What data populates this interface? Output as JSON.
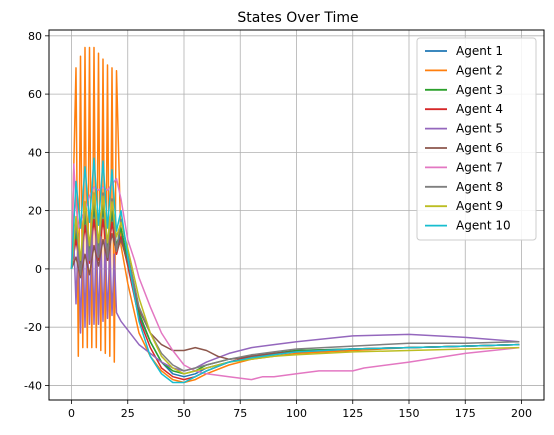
{
  "chart_data": {
    "type": "line",
    "title": "States Over Time",
    "xlabel": "",
    "ylabel": "",
    "xlim": [
      -10,
      210
    ],
    "ylim": [
      -45,
      82
    ],
    "xticks": [
      0,
      25,
      50,
      75,
      100,
      125,
      150,
      175,
      200
    ],
    "yticks": [
      -40,
      -20,
      0,
      20,
      40,
      60,
      80
    ],
    "grid": true,
    "legend_position": "top-right",
    "series": [
      {
        "name": "Agent 1",
        "color": "#1f77b4",
        "x": [
          0,
          2,
          4,
          6,
          8,
          10,
          12,
          14,
          16,
          18,
          20,
          22,
          25,
          30,
          35,
          40,
          45,
          50,
          55,
          60,
          70,
          80,
          90,
          100,
          125,
          150,
          175,
          199
        ],
        "y": [
          0,
          14,
          -1,
          19,
          4,
          21,
          4,
          21,
          4,
          19,
          6,
          13,
          2,
          -16,
          -25,
          -32,
          -36,
          -37,
          -36,
          -34,
          -32,
          -30,
          -29,
          -28,
          -27.5,
          -27,
          -26.5,
          -26
        ]
      },
      {
        "name": "Agent 2",
        "color": "#ff7f0e",
        "x": [
          0,
          2,
          3,
          4,
          5,
          6,
          7,
          8,
          9,
          10,
          11,
          12,
          13,
          14,
          15,
          16,
          17,
          18,
          19,
          20,
          22,
          25,
          30,
          35,
          40,
          45,
          50,
          55,
          60,
          70,
          80,
          90,
          100,
          125,
          150,
          175,
          199
        ],
        "y": [
          0,
          69,
          -30,
          73,
          -27,
          76,
          -27,
          76,
          -27,
          76,
          -27,
          74,
          -28,
          72,
          -29,
          70,
          -30,
          69,
          -32,
          68,
          8,
          -5,
          -22,
          -30,
          -35,
          -38,
          -39,
          -38,
          -36,
          -33,
          -31,
          -30,
          -29,
          -28,
          -27,
          -26.5,
          -26
        ]
      },
      {
        "name": "Agent 3",
        "color": "#2ca02c",
        "x": [
          0,
          2,
          4,
          6,
          8,
          10,
          12,
          14,
          16,
          18,
          20,
          22,
          25,
          30,
          35,
          40,
          45,
          50,
          55,
          60,
          70,
          80,
          90,
          100,
          125,
          150,
          175,
          199
        ],
        "y": [
          0,
          12,
          2,
          18,
          6,
          22,
          7,
          22,
          7,
          20,
          8,
          14,
          3,
          -15,
          -25,
          -32,
          -35,
          -36,
          -35,
          -33,
          -31,
          -30,
          -29,
          -28,
          -27.5,
          -27,
          -26.5,
          -26
        ]
      },
      {
        "name": "Agent 4",
        "color": "#d62728",
        "x": [
          0,
          2,
          4,
          6,
          8,
          10,
          12,
          14,
          16,
          18,
          20,
          22,
          25,
          30,
          35,
          40,
          45,
          50,
          55,
          60,
          70,
          80,
          90,
          100,
          125,
          150,
          175,
          199
        ],
        "y": [
          0,
          10,
          0,
          15,
          2,
          17,
          3,
          17,
          3,
          16,
          5,
          11,
          1,
          -17,
          -27,
          -34,
          -37,
          -38,
          -37,
          -35,
          -32,
          -30,
          -29,
          -28.5,
          -27.5,
          -27,
          -26.5,
          -26
        ]
      },
      {
        "name": "Agent 5",
        "color": "#9467bd",
        "x": [
          0,
          1,
          2,
          3,
          4,
          5,
          6,
          7,
          8,
          9,
          10,
          11,
          12,
          13,
          14,
          15,
          16,
          17,
          18,
          19,
          20,
          22,
          25,
          30,
          35,
          40,
          45,
          50,
          55,
          60,
          70,
          80,
          90,
          100,
          125,
          150,
          175,
          199
        ],
        "y": [
          0,
          10,
          -12,
          12,
          -22,
          14,
          -20,
          15,
          -19,
          14,
          -19,
          13,
          -19,
          11,
          -18,
          10,
          -17,
          8,
          -16,
          5,
          -15,
          -18,
          -21,
          -26,
          -29,
          -32,
          -34,
          -35,
          -34,
          -32,
          -29,
          -27,
          -26,
          -25,
          -23,
          -22.5,
          -23.5,
          -25
        ]
      },
      {
        "name": "Agent 6",
        "color": "#8c564b",
        "x": [
          0,
          2,
          4,
          6,
          8,
          10,
          12,
          14,
          16,
          18,
          20,
          22,
          25,
          30,
          35,
          40,
          45,
          50,
          55,
          60,
          65,
          70,
          80,
          90,
          100,
          125,
          150,
          175,
          199
        ],
        "y": [
          0,
          4,
          -3,
          5,
          -2,
          8,
          1,
          10,
          3,
          12,
          6,
          10,
          2,
          -14,
          -22,
          -26,
          -28,
          -28,
          -27,
          -28,
          -30,
          -31,
          -30,
          -29,
          -28.5,
          -27.5,
          -27,
          -26.5,
          -26
        ]
      },
      {
        "name": "Agent 7",
        "color": "#e377c2",
        "x": [
          0,
          1,
          2,
          3,
          4,
          6,
          8,
          10,
          12,
          14,
          16,
          18,
          20,
          22,
          25,
          28,
          30,
          35,
          40,
          45,
          50,
          55,
          60,
          70,
          80,
          85,
          90,
          100,
          110,
          125,
          130,
          150,
          175,
          199
        ],
        "y": [
          0,
          36,
          22,
          14,
          16,
          20,
          25,
          28,
          27,
          28,
          27,
          29,
          31,
          24,
          10,
          3,
          -3,
          -13,
          -22,
          -28,
          -33,
          -35,
          -36,
          -37,
          -38,
          -37,
          -37,
          -36,
          -35,
          -35,
          -34,
          -32,
          -29,
          -27
        ]
      },
      {
        "name": "Agent 8",
        "color": "#7f7f7f",
        "x": [
          0,
          2,
          4,
          6,
          8,
          10,
          12,
          14,
          16,
          18,
          20,
          22,
          25,
          30,
          35,
          40,
          45,
          50,
          55,
          60,
          70,
          80,
          90,
          100,
          125,
          150,
          175,
          199
        ],
        "y": [
          0,
          16,
          -2,
          22,
          3,
          26,
          4,
          26,
          4,
          24,
          6,
          17,
          5,
          -13,
          -22,
          -29,
          -33,
          -35,
          -34,
          -33,
          -31,
          -29.5,
          -28.5,
          -27.5,
          -26.5,
          -25.5,
          -25.5,
          -25
        ]
      },
      {
        "name": "Agent 9",
        "color": "#bcbd22",
        "x": [
          0,
          2,
          4,
          6,
          8,
          10,
          12,
          14,
          16,
          18,
          20,
          22,
          25,
          30,
          35,
          40,
          45,
          50,
          55,
          60,
          70,
          80,
          90,
          100,
          125,
          150,
          175,
          199
        ],
        "y": [
          0,
          18,
          3,
          23,
          8,
          26,
          9,
          25,
          9,
          23,
          11,
          16,
          7,
          -10,
          -22,
          -30,
          -34,
          -36,
          -35,
          -34,
          -32,
          -31,
          -30,
          -29.5,
          -28.5,
          -28,
          -27.5,
          -27
        ]
      },
      {
        "name": "Agent 10",
        "color": "#17becf",
        "x": [
          0,
          2,
          4,
          6,
          8,
          10,
          12,
          14,
          16,
          18,
          20,
          22,
          25,
          30,
          35,
          40,
          45,
          50,
          55,
          60,
          70,
          80,
          90,
          100,
          125,
          150,
          175,
          199
        ],
        "y": [
          0,
          30,
          14,
          35,
          16,
          38,
          15,
          37,
          14,
          34,
          13,
          20,
          4,
          -18,
          -30,
          -36,
          -39,
          -39,
          -37,
          -35,
          -32,
          -30.5,
          -29.5,
          -28.5,
          -27.5,
          -27,
          -26.5,
          -26
        ]
      }
    ]
  }
}
